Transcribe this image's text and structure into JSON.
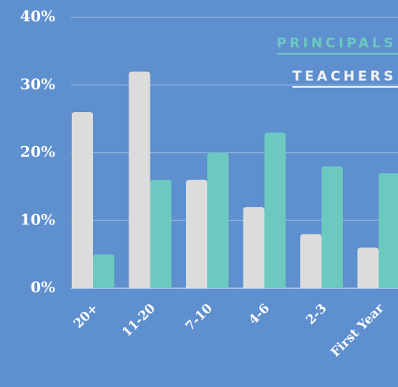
{
  "chart_data": {
    "type": "bar",
    "categories": [
      "20+",
      "11-20",
      "7-10",
      "4-6",
      "2-3",
      "First Year"
    ],
    "series": [
      {
        "name": "TEACHERS",
        "color": "#dcdcdc",
        "values": [
          26,
          32,
          16,
          12,
          8,
          6
        ]
      },
      {
        "name": "PRINCIPALS",
        "color": "#6cc9c0",
        "values": [
          5,
          16,
          20,
          23,
          18,
          17
        ]
      }
    ],
    "ylim": [
      0,
      40
    ],
    "yticks": [
      {
        "value": 0,
        "label": "0%"
      },
      {
        "value": 10,
        "label": "10%"
      },
      {
        "value": 20,
        "label": "20%"
      },
      {
        "value": 30,
        "label": "30%"
      },
      {
        "value": 40,
        "label": "40%"
      }
    ],
    "grid": true
  }
}
